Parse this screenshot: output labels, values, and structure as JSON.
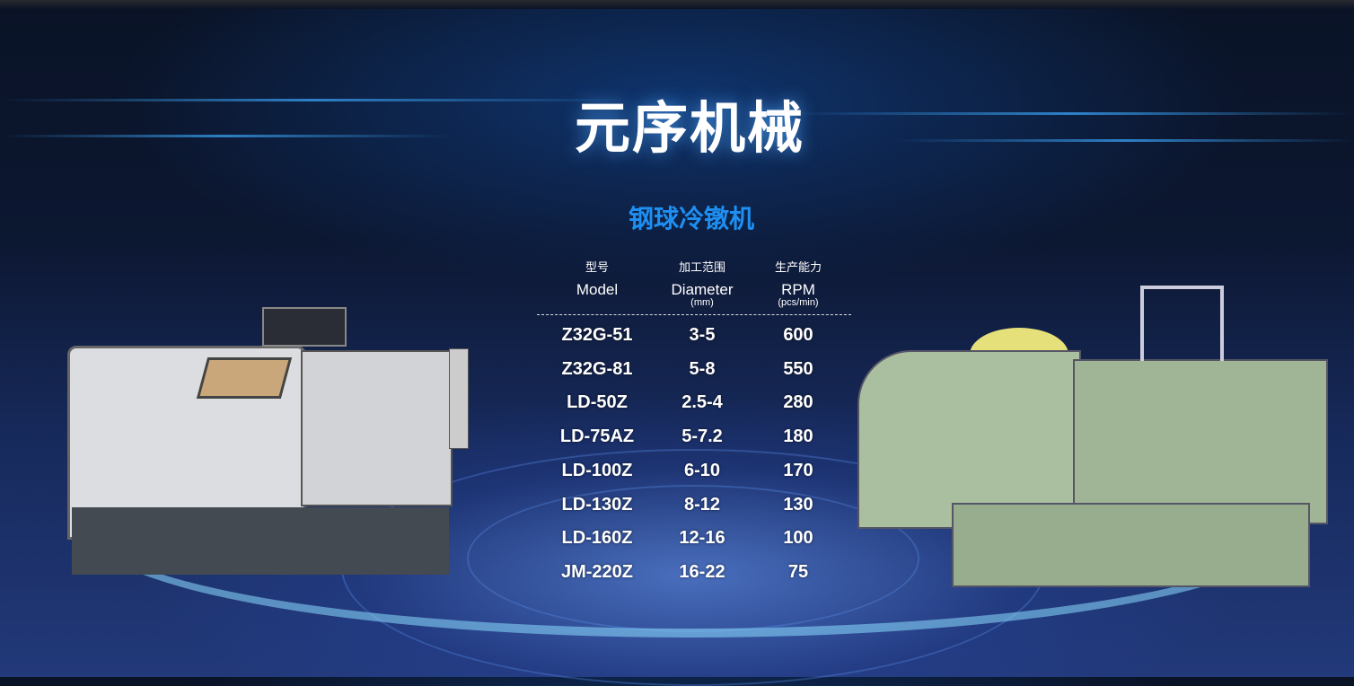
{
  "title": "元序机械",
  "subtitle": "钢球冷镦机",
  "table": {
    "headers": [
      {
        "cn": "型号",
        "en": "Model",
        "unit": ""
      },
      {
        "cn": "加工范围",
        "en": "Diameter",
        "unit": "(mm)"
      },
      {
        "cn": "生产能力",
        "en": "RPM",
        "unit": "(pcs/min)"
      }
    ],
    "rows": [
      [
        "Z32G-51",
        "3-5",
        "600"
      ],
      [
        "Z32G-81",
        "5-8",
        "550"
      ],
      [
        "LD-50Z",
        "2.5-4",
        "280"
      ],
      [
        "LD-75AZ",
        "5-7.2",
        "180"
      ],
      [
        "LD-100Z",
        "6-10",
        "170"
      ],
      [
        "LD-130Z",
        "8-12",
        "130"
      ],
      [
        "LD-160Z",
        "12-16",
        "100"
      ],
      [
        "JM-220Z",
        "16-22",
        "75"
      ]
    ]
  },
  "colors": {
    "subtitle": "#1e8ff2",
    "background": "#0c1731",
    "left_machine": "#d8d9dc",
    "right_machine": "#a9bfa0"
  }
}
